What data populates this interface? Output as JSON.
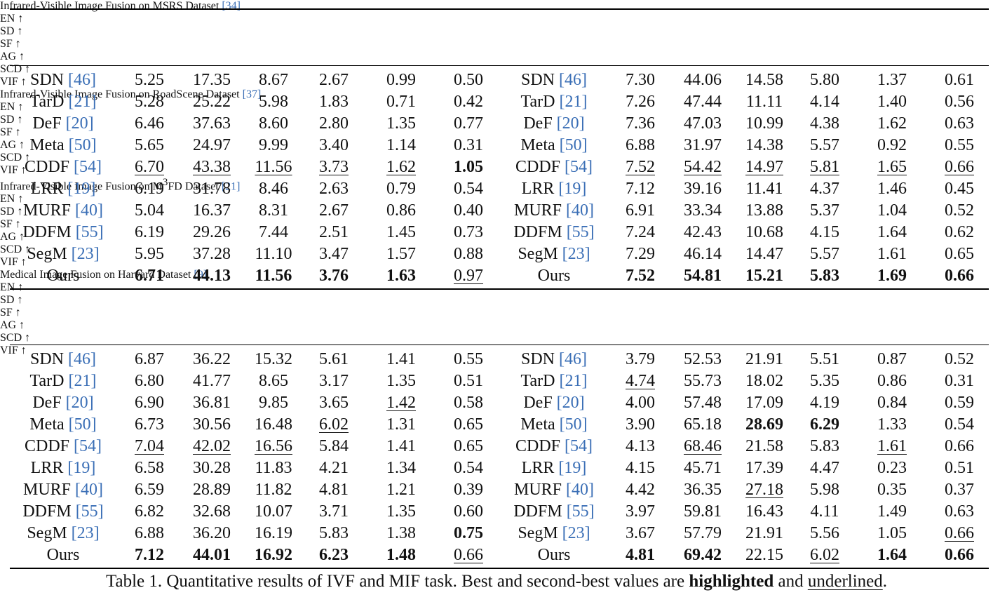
{
  "headers": [
    "EN ↑",
    "SD ↑",
    "SF ↑",
    "AG ↑",
    "SCD ↑",
    "VIF ↑"
  ],
  "tables": [
    {
      "title_pre": "Infrared-Visible Image Fusion on MSRS Dataset ",
      "title_sup": "",
      "title_post": "",
      "title_ref": "[34]",
      "rows": [
        {
          "method": "SDN ",
          "ref": "[46]",
          "values": [
            "5.25",
            "17.35",
            "8.67",
            "2.67",
            "0.99",
            "0.50"
          ],
          "style": [
            "",
            "",
            "",
            "",
            "",
            ""
          ]
        },
        {
          "method": "TarD ",
          "ref": "[21]",
          "values": [
            "5.28",
            "25.22",
            "5.98",
            "1.83",
            "0.71",
            "0.42"
          ],
          "style": [
            "",
            "",
            "",
            "",
            "",
            ""
          ]
        },
        {
          "method": "DeF ",
          "ref": "[20]",
          "values": [
            "6.46",
            "37.63",
            "8.60",
            "2.80",
            "1.35",
            "0.77"
          ],
          "style": [
            "",
            "",
            "",
            "",
            "",
            ""
          ]
        },
        {
          "method": "Meta ",
          "ref": "[50]",
          "values": [
            "5.65",
            "24.97",
            "9.99",
            "3.40",
            "1.14",
            "0.31"
          ],
          "style": [
            "",
            "",
            "",
            "",
            "",
            ""
          ]
        },
        {
          "method": "CDDF ",
          "ref": "[54]",
          "values": [
            "6.70",
            "43.38",
            "11.56",
            "3.73",
            "1.62",
            "1.05"
          ],
          "style": [
            "u",
            "u",
            "u",
            "u",
            "u",
            "b"
          ]
        },
        {
          "method": "LRR ",
          "ref": "[19]",
          "values": [
            "6.19",
            "31.78",
            "8.46",
            "2.63",
            "0.79",
            "0.54"
          ],
          "style": [
            "",
            "",
            "",
            "",
            "",
            ""
          ]
        },
        {
          "method": "MURF ",
          "ref": "[40]",
          "values": [
            "5.04",
            "16.37",
            "8.31",
            "2.67",
            "0.86",
            "0.40"
          ],
          "style": [
            "",
            "",
            "",
            "",
            "",
            ""
          ]
        },
        {
          "method": "DDFM ",
          "ref": "[55]",
          "values": [
            "6.19",
            "29.26",
            "7.44",
            "2.51",
            "1.45",
            "0.73"
          ],
          "style": [
            "",
            "",
            "",
            "",
            "",
            ""
          ]
        },
        {
          "method": "SegM ",
          "ref": "[23]",
          "values": [
            "5.95",
            "37.28",
            "11.10",
            "3.47",
            "1.57",
            "0.88"
          ],
          "style": [
            "",
            "",
            "",
            "",
            "",
            ""
          ]
        },
        {
          "method": "Ours",
          "ref": "",
          "values": [
            "6.71",
            "44.13",
            "11.56",
            "3.76",
            "1.63",
            "0.97"
          ],
          "style": [
            "b",
            "b",
            "b",
            "b",
            "b",
            "u"
          ]
        }
      ]
    },
    {
      "title_pre": "Infrared-Visible Image Fusion on RoadScene Dataset ",
      "title_sup": "",
      "title_post": "",
      "title_ref": "[37]",
      "rows": [
        {
          "method": "SDN ",
          "ref": "[46]",
          "values": [
            "7.30",
            "44.06",
            "14.58",
            "5.80",
            "1.37",
            "0.61"
          ],
          "style": [
            "",
            "",
            "",
            "",
            "",
            ""
          ]
        },
        {
          "method": "TarD ",
          "ref": "[21]",
          "values": [
            "7.26",
            "47.44",
            "11.11",
            "4.14",
            "1.40",
            "0.56"
          ],
          "style": [
            "",
            "",
            "",
            "",
            "",
            ""
          ]
        },
        {
          "method": "DeF ",
          "ref": "[20]",
          "values": [
            "7.36",
            "47.03",
            "10.99",
            "4.38",
            "1.62",
            "0.63"
          ],
          "style": [
            "",
            "",
            "",
            "",
            "",
            ""
          ]
        },
        {
          "method": "Meta ",
          "ref": "[50]",
          "values": [
            "6.88",
            "31.97",
            "14.38",
            "5.57",
            "0.92",
            "0.55"
          ],
          "style": [
            "",
            "",
            "",
            "",
            "",
            ""
          ]
        },
        {
          "method": "CDDF ",
          "ref": "[54]",
          "values": [
            "7.52",
            "54.42",
            "14.97",
            "5.81",
            "1.65",
            "0.66"
          ],
          "style": [
            "u",
            "u",
            "u",
            "u",
            "u",
            "u"
          ]
        },
        {
          "method": "LRR ",
          "ref": "[19]",
          "values": [
            "7.12",
            "39.16",
            "11.41",
            "4.37",
            "1.46",
            "0.45"
          ],
          "style": [
            "",
            "",
            "",
            "",
            "",
            ""
          ]
        },
        {
          "method": "MURF ",
          "ref": "[40]",
          "values": [
            "6.91",
            "33.34",
            "13.88",
            "5.37",
            "1.04",
            "0.52"
          ],
          "style": [
            "",
            "",
            "",
            "",
            "",
            ""
          ]
        },
        {
          "method": "DDFM ",
          "ref": "[55]",
          "values": [
            "7.24",
            "42.43",
            "10.68",
            "4.15",
            "1.64",
            "0.62"
          ],
          "style": [
            "",
            "",
            "",
            "",
            "",
            ""
          ]
        },
        {
          "method": "SegM ",
          "ref": "[23]",
          "values": [
            "7.29",
            "46.14",
            "14.47",
            "5.57",
            "1.61",
            "0.65"
          ],
          "style": [
            "",
            "",
            "",
            "",
            "",
            ""
          ]
        },
        {
          "method": "Ours",
          "ref": "",
          "values": [
            "7.52",
            "54.81",
            "15.21",
            "5.83",
            "1.69",
            "0.66"
          ],
          "style": [
            "b",
            "b",
            "b",
            "b",
            "b",
            "b"
          ]
        }
      ]
    },
    {
      "title_pre": "Infrared-Visible Image Fusion on M",
      "title_sup": "3",
      "title_post": "FD Dataset ",
      "title_ref": "[21]",
      "rows": [
        {
          "method": "SDN ",
          "ref": "[46]",
          "values": [
            "6.87",
            "36.22",
            "15.32",
            "5.61",
            "1.41",
            "0.55"
          ],
          "style": [
            "",
            "",
            "",
            "",
            "",
            ""
          ]
        },
        {
          "method": "TarD ",
          "ref": "[21]",
          "values": [
            "6.80",
            "41.77",
            "8.65",
            "3.17",
            "1.35",
            "0.51"
          ],
          "style": [
            "",
            "",
            "",
            "",
            "",
            ""
          ]
        },
        {
          "method": "DeF ",
          "ref": "[20]",
          "values": [
            "6.90",
            "36.81",
            "9.85",
            "3.65",
            "1.42",
            "0.58"
          ],
          "style": [
            "",
            "",
            "",
            "",
            "u",
            ""
          ]
        },
        {
          "method": "Meta ",
          "ref": "[50]",
          "values": [
            "6.73",
            "30.56",
            "16.48",
            "6.02",
            "1.31",
            "0.65"
          ],
          "style": [
            "",
            "",
            "",
            "u",
            "",
            ""
          ]
        },
        {
          "method": "CDDF ",
          "ref": "[54]",
          "values": [
            "7.04",
            "42.02",
            "16.56",
            "5.84",
            "1.41",
            "0.65"
          ],
          "style": [
            "u",
            "u",
            "u",
            "",
            "",
            ""
          ]
        },
        {
          "method": "LRR ",
          "ref": "[19]",
          "values": [
            "6.58",
            "30.28",
            "11.83",
            "4.21",
            "1.34",
            "0.54"
          ],
          "style": [
            "",
            "",
            "",
            "",
            "",
            ""
          ]
        },
        {
          "method": "MURF ",
          "ref": "[40]",
          "values": [
            "6.59",
            "28.89",
            "11.82",
            "4.81",
            "1.21",
            "0.39"
          ],
          "style": [
            "",
            "",
            "",
            "",
            "",
            ""
          ]
        },
        {
          "method": "DDFM ",
          "ref": "[55]",
          "values": [
            "6.82",
            "32.68",
            "10.07",
            "3.71",
            "1.35",
            "0.60"
          ],
          "style": [
            "",
            "",
            "",
            "",
            "",
            ""
          ]
        },
        {
          "method": "SegM ",
          "ref": "[23]",
          "values": [
            "6.88",
            "36.20",
            "16.19",
            "5.83",
            "1.38",
            "0.75"
          ],
          "style": [
            "",
            "",
            "",
            "",
            "",
            "b"
          ]
        },
        {
          "method": "Ours",
          "ref": "",
          "values": [
            "7.12",
            "44.01",
            "16.92",
            "6.23",
            "1.48",
            "0.66"
          ],
          "style": [
            "b",
            "b",
            "b",
            "b",
            "b",
            "u"
          ]
        }
      ]
    },
    {
      "title_pre": "Medical Image Fusion on Harvard Dataset ",
      "title_sup": "",
      "title_post": "",
      "title_ref": "[9]",
      "rows": [
        {
          "method": "SDN ",
          "ref": "[46]",
          "values": [
            "3.79",
            "52.53",
            "21.91",
            "5.51",
            "0.87",
            "0.52"
          ],
          "style": [
            "",
            "",
            "",
            "",
            "",
            ""
          ]
        },
        {
          "method": "TarD ",
          "ref": "[21]",
          "values": [
            "4.74",
            "55.73",
            "18.02",
            "5.35",
            "0.86",
            "0.31"
          ],
          "style": [
            "u",
            "",
            "",
            "",
            "",
            ""
          ]
        },
        {
          "method": "DeF ",
          "ref": "[20]",
          "values": [
            "4.00",
            "57.48",
            "17.09",
            "4.19",
            "0.84",
            "0.59"
          ],
          "style": [
            "",
            "",
            "",
            "",
            "",
            ""
          ]
        },
        {
          "method": "Meta ",
          "ref": "[50]",
          "values": [
            "3.90",
            "65.18",
            "28.69",
            "6.29",
            "1.33",
            "0.54"
          ],
          "style": [
            "",
            "",
            "b",
            "b",
            "",
            ""
          ]
        },
        {
          "method": "CDDF ",
          "ref": "[54]",
          "values": [
            "4.13",
            "68.46",
            "21.58",
            "5.83",
            "1.61",
            "0.66"
          ],
          "style": [
            "",
            "u",
            "",
            "",
            "u",
            ""
          ]
        },
        {
          "method": "LRR ",
          "ref": "[19]",
          "values": [
            "4.15",
            "45.71",
            "17.39",
            "4.47",
            "0.23",
            "0.51"
          ],
          "style": [
            "",
            "",
            "",
            "",
            "",
            ""
          ]
        },
        {
          "method": "MURF ",
          "ref": "[40]",
          "values": [
            "4.42",
            "36.35",
            "27.18",
            "5.98",
            "0.35",
            "0.37"
          ],
          "style": [
            "",
            "",
            "u",
            "",
            "",
            ""
          ]
        },
        {
          "method": "DDFM ",
          "ref": "[55]",
          "values": [
            "3.97",
            "59.81",
            "16.43",
            "4.11",
            "1.49",
            "0.63"
          ],
          "style": [
            "",
            "",
            "",
            "",
            "",
            ""
          ]
        },
        {
          "method": "SegM ",
          "ref": "[23]",
          "values": [
            "3.67",
            "57.79",
            "21.91",
            "5.56",
            "1.05",
            "0.66"
          ],
          "style": [
            "",
            "",
            "",
            "",
            "",
            "u"
          ]
        },
        {
          "method": "Ours",
          "ref": "",
          "values": [
            "4.81",
            "69.42",
            "22.15",
            "6.02",
            "1.64",
            "0.66"
          ],
          "style": [
            "b",
            "b",
            "",
            "u",
            "b",
            "b"
          ]
        }
      ]
    }
  ],
  "caption": {
    "pre": "Table 1. Quantitative results of IVF and MIF task. Best and second-best values are ",
    "bold": "highlighted",
    "mid": " and ",
    "underline": "underlined",
    "post": "."
  }
}
